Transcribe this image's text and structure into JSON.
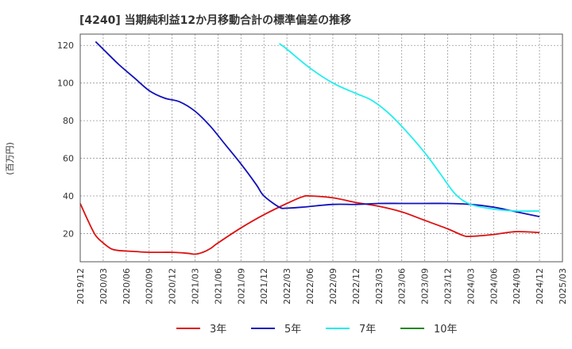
{
  "chart_data": {
    "type": "line",
    "title": "[4240]  当期純利益12か月移動合計の標準偏差の推移",
    "xlabel": "",
    "ylabel": "(百万円)",
    "ylim": [
      5,
      126
    ],
    "yticks": [
      20,
      40,
      60,
      80,
      100,
      120
    ],
    "x_start": "2019-12",
    "x_end": "2025-03",
    "xticks": [
      "2019/12",
      "2020/03",
      "2020/06",
      "2020/09",
      "2020/12",
      "2021/03",
      "2021/06",
      "2021/09",
      "2021/12",
      "2022/03",
      "2022/06",
      "2022/09",
      "2022/12",
      "2023/03",
      "2023/06",
      "2023/09",
      "2023/12",
      "2024/03",
      "2024/06",
      "2024/09",
      "2024/12",
      "2025/03"
    ],
    "grid": true,
    "legend_position": "bottom",
    "series": [
      {
        "name": "3年",
        "color": "#dd1111",
        "points": [
          [
            "2019-12",
            36
          ],
          [
            "2020-01",
            27
          ],
          [
            "2020-02",
            19
          ],
          [
            "2020-03",
            15
          ],
          [
            "2020-04",
            12
          ],
          [
            "2020-05",
            11
          ],
          [
            "2020-07",
            10.5
          ],
          [
            "2020-09",
            10
          ],
          [
            "2020-12",
            10
          ],
          [
            "2021-02",
            9.5
          ],
          [
            "2021-03",
            9
          ],
          [
            "2021-04",
            10
          ],
          [
            "2021-05",
            12
          ],
          [
            "2021-06",
            15
          ],
          [
            "2021-09",
            23
          ],
          [
            "2021-12",
            30
          ],
          [
            "2022-03",
            36
          ],
          [
            "2022-05",
            39.5
          ],
          [
            "2022-06",
            40
          ],
          [
            "2022-09",
            39
          ],
          [
            "2022-12",
            36.5
          ],
          [
            "2023-03",
            34.5
          ],
          [
            "2023-06",
            31.5
          ],
          [
            "2023-09",
            27
          ],
          [
            "2023-12",
            22.5
          ],
          [
            "2024-02",
            19
          ],
          [
            "2024-03",
            18.5
          ],
          [
            "2024-06",
            19.5
          ],
          [
            "2024-09",
            21
          ],
          [
            "2024-12",
            20.5
          ]
        ]
      },
      {
        "name": "5年",
        "color": "#1111bb",
        "points": [
          [
            "2020-02",
            122
          ],
          [
            "2020-03",
            118
          ],
          [
            "2020-05",
            110
          ],
          [
            "2020-07",
            103
          ],
          [
            "2020-09",
            96
          ],
          [
            "2020-11",
            92
          ],
          [
            "2021-01",
            90
          ],
          [
            "2021-03",
            85
          ],
          [
            "2021-05",
            77
          ],
          [
            "2021-07",
            67
          ],
          [
            "2021-09",
            57
          ],
          [
            "2021-11",
            46
          ],
          [
            "2021-12",
            40
          ],
          [
            "2022-02",
            34
          ],
          [
            "2022-03",
            33.5
          ],
          [
            "2022-05",
            34
          ],
          [
            "2022-09",
            35.5
          ],
          [
            "2022-12",
            35.5
          ],
          [
            "2023-03",
            36
          ],
          [
            "2023-06",
            36
          ],
          [
            "2023-09",
            36
          ],
          [
            "2023-12",
            36
          ],
          [
            "2024-03",
            35.5
          ],
          [
            "2024-06",
            34
          ],
          [
            "2024-09",
            31.5
          ],
          [
            "2024-12",
            29
          ]
        ]
      },
      {
        "name": "7年",
        "color": "#22eeee",
        "points": [
          [
            "2022-02",
            121
          ],
          [
            "2022-03",
            118
          ],
          [
            "2022-06",
            108
          ],
          [
            "2022-09",
            100
          ],
          [
            "2022-12",
            94.5
          ],
          [
            "2023-02",
            91
          ],
          [
            "2023-04",
            85
          ],
          [
            "2023-06",
            77
          ],
          [
            "2023-09",
            63
          ],
          [
            "2023-11",
            52
          ],
          [
            "2024-01",
            41
          ],
          [
            "2024-03",
            35.5
          ],
          [
            "2024-06",
            33
          ],
          [
            "2024-09",
            32
          ],
          [
            "2024-12",
            32
          ]
        ]
      },
      {
        "name": "10年",
        "color": "#228822",
        "points": []
      }
    ]
  }
}
